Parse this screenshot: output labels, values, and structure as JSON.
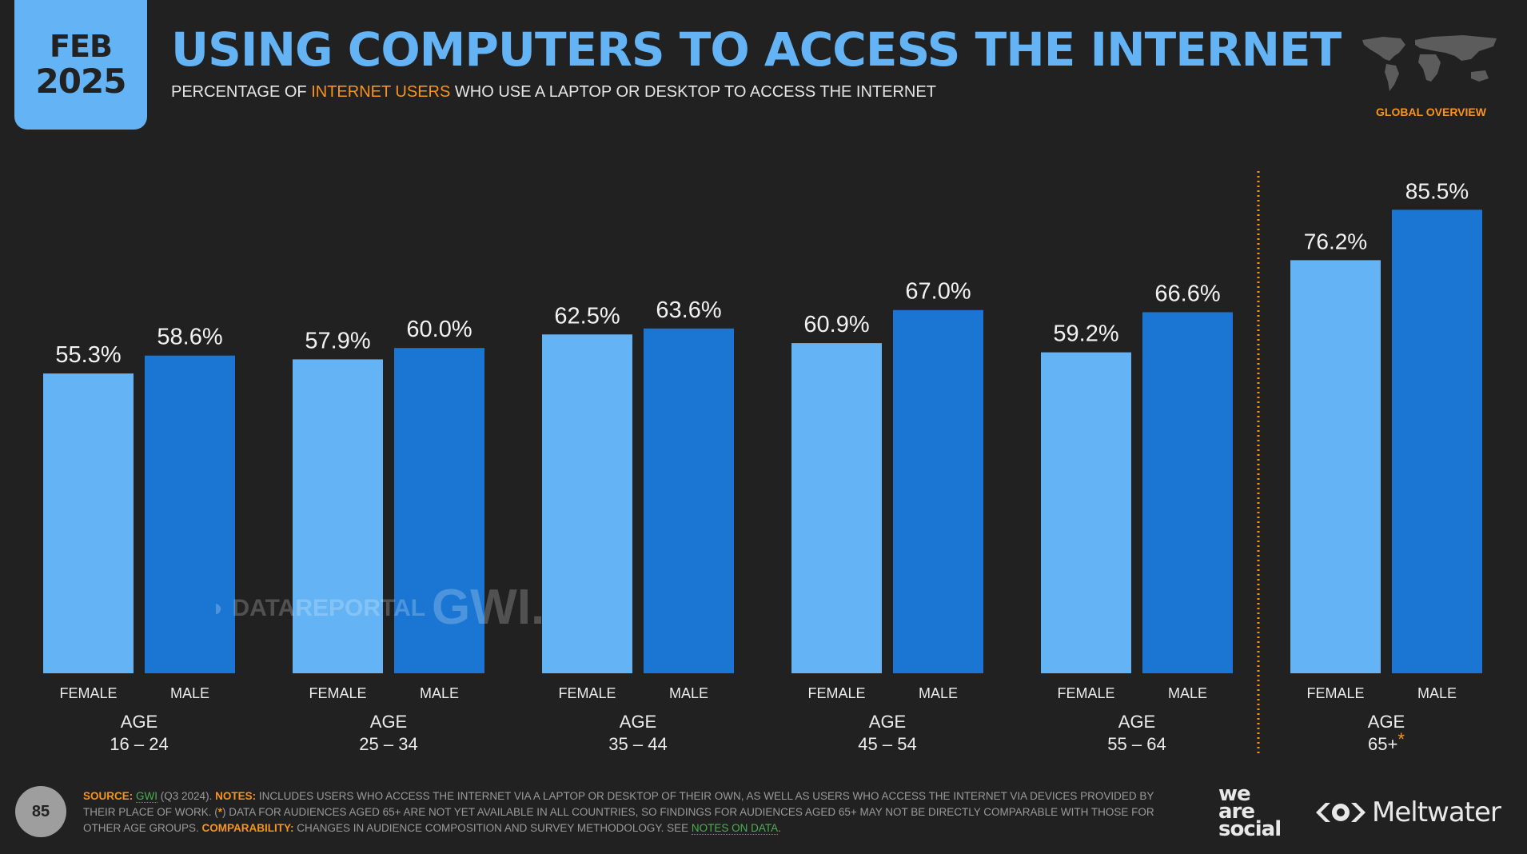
{
  "badge": {
    "month": "FEB",
    "year": "2025"
  },
  "header": {
    "title": "USING COMPUTERS TO ACCESS THE INTERNET",
    "subtitle_pre": "PERCENTAGE OF ",
    "subtitle_highlight": "INTERNET USERS",
    "subtitle_post": " WHO USE A LAPTOP OR DESKTOP TO ACCESS THE INTERNET",
    "region_label": "GLOBAL OVERVIEW",
    "map_icon": "world-map-icon"
  },
  "colors": {
    "female": "#63b3f5",
    "male": "#1a76d2",
    "accent": "#f7941d",
    "background": "#212121",
    "link": "#4caf50"
  },
  "watermarks": {
    "datareportal": "DATAREPORTAL",
    "gwi": "GWI."
  },
  "chart_data": {
    "type": "bar",
    "title": "USING COMPUTERS TO ACCESS THE INTERNET",
    "subtitle": "PERCENTAGE OF INTERNET USERS WHO USE A LAPTOP OR DESKTOP TO ACCESS THE INTERNET",
    "xlabel": "",
    "ylabel": "",
    "ylim": [
      0,
      100
    ],
    "grid": false,
    "categories": [
      {
        "line1": "AGE",
        "line2": "16 – 24",
        "asterisk": ""
      },
      {
        "line1": "AGE",
        "line2": "25 – 34",
        "asterisk": ""
      },
      {
        "line1": "AGE",
        "line2": "35 – 44",
        "asterisk": ""
      },
      {
        "line1": "AGE",
        "line2": "45 – 54",
        "asterisk": ""
      },
      {
        "line1": "AGE",
        "line2": "55 – 64",
        "asterisk": ""
      },
      {
        "line1": "AGE",
        "line2": "65+",
        "asterisk": "*"
      }
    ],
    "series": [
      {
        "name": "FEMALE",
        "values": [
          55.3,
          57.9,
          62.5,
          60.9,
          59.2,
          76.2
        ],
        "labels": [
          "55.3%",
          "57.9%",
          "62.5%",
          "60.9%",
          "59.2%",
          "76.2%"
        ]
      },
      {
        "name": "MALE",
        "values": [
          58.6,
          60.0,
          63.6,
          67.0,
          66.6,
          85.5
        ],
        "labels": [
          "58.6%",
          "60.0%",
          "63.6%",
          "67.0%",
          "66.6%",
          "85.5%"
        ]
      }
    ],
    "separator_before_category": 5
  },
  "footer": {
    "page_number": "85",
    "source_label": "SOURCE:",
    "source_link": "GWI",
    "source_rest": " (Q3 2024). ",
    "notes_label": "NOTES:",
    "notes_text_1": " INCLUDES USERS WHO ACCESS THE INTERNET VIA A LAPTOP OR DESKTOP OF THEIR OWN, AS WELL AS USERS WHO ACCESS THE INTERNET VIA DEVICES PROVIDED BY THEIR PLACE OF WORK. (",
    "notes_asterisk": "*",
    "notes_text_2": ") DATA FOR AUDIENCES AGED 65+ ARE NOT YET AVAILABLE IN ALL COUNTRIES, SO FINDINGS FOR AUDIENCES AGED 65+ MAY NOT BE DIRECTLY COMPARABLE WITH THOSE FOR OTHER AGE GROUPS. ",
    "comparability_label": "COMPARABILITY:",
    "comparability_text": " CHANGES IN AUDIENCE COMPOSITION AND SURVEY METHODOLOGY. SEE ",
    "notes_link": "NOTES ON DATA",
    "end": ".",
    "logo_wearesocial": [
      "we",
      "are",
      "social"
    ],
    "logo_meltwater": "Meltwater"
  }
}
